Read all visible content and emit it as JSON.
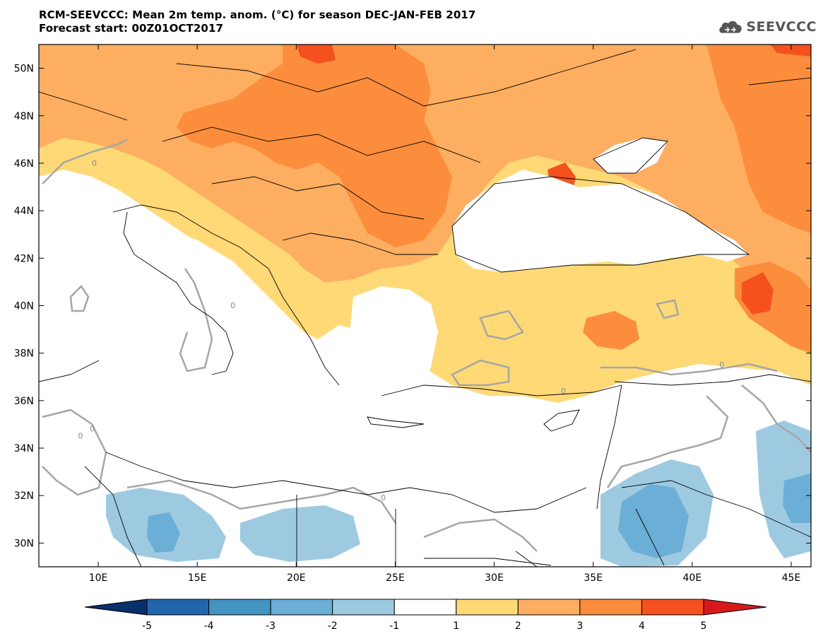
{
  "header": {
    "title_line1": "RCM-SEEVCCC: Mean 2m temp. anom. (°C) for season DEC-JAN-FEB 2017",
    "title_line2": "Forecast start: 00Z01OCT2017",
    "logo_text": "SEEVCCC"
  },
  "map": {
    "lon_range": [
      7,
      46
    ],
    "lat_range": [
      29,
      51
    ],
    "x_ticks": [
      {
        "value": 10,
        "label": "10E"
      },
      {
        "value": 15,
        "label": "15E"
      },
      {
        "value": 20,
        "label": "20E"
      },
      {
        "value": 25,
        "label": "25E"
      },
      {
        "value": 30,
        "label": "30E"
      },
      {
        "value": 35,
        "label": "35E"
      },
      {
        "value": 40,
        "label": "40E"
      },
      {
        "value": 45,
        "label": "45E"
      }
    ],
    "y_ticks": [
      {
        "value": 50,
        "label": "50N"
      },
      {
        "value": 48,
        "label": "48N"
      },
      {
        "value": 46,
        "label": "46N"
      },
      {
        "value": 44,
        "label": "44N"
      },
      {
        "value": 42,
        "label": "42N"
      },
      {
        "value": 40,
        "label": "40N"
      },
      {
        "value": 38,
        "label": "38N"
      },
      {
        "value": 36,
        "label": "36N"
      },
      {
        "value": 34,
        "label": "34N"
      },
      {
        "value": 32,
        "label": "32N"
      },
      {
        "value": 30,
        "label": "30N"
      }
    ],
    "contour_labels": [
      {
        "lon": 9.8,
        "lat": 45.9,
        "text": "0"
      },
      {
        "lon": 16.8,
        "lat": 39.9,
        "text": "0"
      },
      {
        "lon": 9.1,
        "lat": 34.4,
        "text": "0"
      },
      {
        "lon": 9.7,
        "lat": 34.7,
        "text": "0"
      },
      {
        "lon": 24.4,
        "lat": 31.8,
        "text": "0"
      },
      {
        "lon": 33.5,
        "lat": 36.3,
        "text": "0"
      },
      {
        "lon": 41.5,
        "lat": 37.4,
        "text": "0"
      }
    ]
  },
  "colorbar": {
    "labels": [
      "-5",
      "-4",
      "-3",
      "-2",
      "-1",
      "1",
      "2",
      "3",
      "4",
      "5"
    ],
    "colors": [
      "#08306b",
      "#2166ac",
      "#4393c3",
      "#6baed6",
      "#9ecae1",
      "#ffffff",
      "#fed976",
      "#fdae61",
      "#fc8d3c",
      "#f4511e",
      "#d7191c"
    ]
  }
}
